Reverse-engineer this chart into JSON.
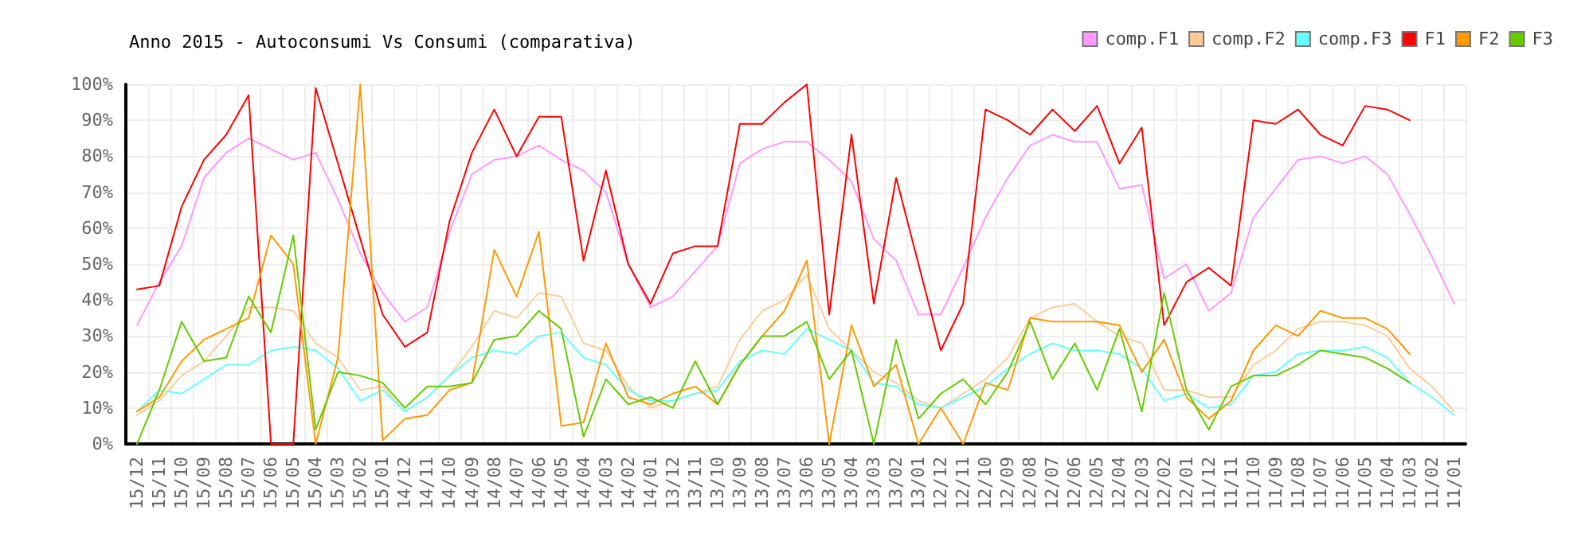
{
  "chart_data": {
    "type": "line",
    "title": "Anno 2015 - Autoconsumi Vs Consumi (comparativa)",
    "categories": [
      "15/12",
      "15/11",
      "15/10",
      "15/09",
      "15/08",
      "15/07",
      "15/06",
      "15/05",
      "15/04",
      "15/03",
      "15/02",
      "15/01",
      "14/12",
      "14/11",
      "14/10",
      "14/09",
      "14/08",
      "14/07",
      "14/06",
      "14/05",
      "14/04",
      "14/03",
      "14/02",
      "14/01",
      "13/12",
      "13/11",
      "13/10",
      "13/09",
      "13/08",
      "13/07",
      "13/06",
      "13/05",
      "13/04",
      "13/03",
      "13/02",
      "13/01",
      "12/12",
      "12/11",
      "12/10",
      "12/09",
      "12/08",
      "12/07",
      "12/06",
      "12/05",
      "12/04",
      "12/03",
      "12/02",
      "12/01",
      "11/12",
      "11/11",
      "11/10",
      "11/09",
      "11/08",
      "11/07",
      "11/06",
      "11/05",
      "11/04",
      "11/03",
      "11/02",
      "11/01"
    ],
    "series": [
      {
        "name": "comp.F1",
        "color": "#ff99ff",
        "values": [
          33,
          45,
          55,
          74,
          81,
          85,
          82,
          79,
          81,
          68,
          53,
          42,
          34,
          38,
          59,
          75,
          79,
          80,
          83,
          79,
          76,
          70,
          50,
          38,
          41,
          48,
          55,
          78,
          82,
          84,
          84,
          79,
          73,
          57,
          51,
          36,
          36,
          49,
          63,
          74,
          83,
          86,
          84,
          84,
          71,
          72,
          46,
          50,
          37,
          42,
          63,
          71,
          79,
          80,
          78,
          80,
          75,
          64,
          52,
          39
        ]
      },
      {
        "name": "comp.F2",
        "color": "#ffcc99",
        "values": [
          8,
          12,
          19,
          23,
          30,
          38,
          38,
          37,
          28,
          24,
          15,
          16,
          9,
          13,
          19,
          27,
          37,
          35,
          42,
          41,
          28,
          26,
          16,
          10,
          12,
          14,
          16,
          29,
          37,
          40,
          47,
          32,
          26,
          20,
          17,
          12,
          10,
          14,
          18,
          24,
          35,
          38,
          39,
          34,
          30,
          28,
          15,
          15,
          13,
          13,
          22,
          26,
          32,
          34,
          34,
          33,
          30,
          21,
          16,
          9
        ]
      },
      {
        "name": "comp.F3",
        "color": "#66ffff",
        "values": [
          9,
          15,
          14,
          18,
          22,
          22,
          26,
          27,
          26,
          21,
          12,
          15,
          9,
          13,
          19,
          24,
          26,
          25,
          30,
          31,
          24,
          22,
          15,
          12,
          12,
          14,
          15,
          23,
          26,
          25,
          32,
          29,
          26,
          17,
          16,
          11,
          10,
          13,
          16,
          21,
          25,
          28,
          26,
          26,
          25,
          21,
          12,
          14,
          10,
          11,
          19,
          20,
          25,
          26,
          26,
          27,
          24,
          17,
          13,
          8
        ]
      },
      {
        "name": "F1",
        "color": "#ff0000",
        "values": [
          43,
          44,
          66,
          79,
          86,
          97,
          0,
          0,
          99,
          78,
          57,
          36,
          27,
          31,
          62,
          81,
          93,
          80,
          91,
          91,
          51,
          76,
          50,
          39,
          53,
          55,
          55,
          89,
          89,
          95,
          100,
          36,
          86,
          39,
          74,
          50,
          26,
          39,
          93,
          90,
          86,
          93,
          87,
          94,
          78,
          88,
          33,
          45,
          49,
          44,
          90,
          89,
          93,
          86,
          83,
          94,
          93,
          90,
          null,
          null
        ]
      },
      {
        "name": "F2",
        "color": "#ff9900",
        "values": [
          9,
          13,
          23,
          29,
          32,
          35,
          58,
          50,
          0,
          24,
          100,
          1,
          7,
          8,
          15,
          17,
          54,
          41,
          59,
          5,
          6,
          28,
          13,
          11,
          14,
          16,
          11,
          22,
          30,
          37,
          51,
          0,
          33,
          16,
          22,
          0,
          10,
          0,
          17,
          15,
          35,
          34,
          34,
          34,
          33,
          20,
          29,
          13,
          7,
          12,
          26,
          33,
          30,
          37,
          35,
          35,
          32,
          25,
          null,
          null
        ]
      },
      {
        "name": "F3",
        "color": "#66cc00",
        "values": [
          0,
          15,
          34,
          23,
          24,
          41,
          31,
          58,
          4,
          20,
          19,
          17,
          10,
          16,
          16,
          17,
          29,
          30,
          37,
          32,
          2,
          18,
          11,
          13,
          10,
          23,
          11,
          22,
          30,
          30,
          34,
          18,
          26,
          0,
          29,
          7,
          14,
          18,
          11,
          20,
          34,
          18,
          28,
          15,
          32,
          9,
          42,
          15,
          4,
          16,
          19,
          19,
          22,
          26,
          25,
          24,
          21,
          17,
          null,
          null
        ]
      }
    ],
    "ylim": [
      0,
      100
    ],
    "yticks": [
      {
        "value": 0,
        "label": "0%"
      },
      {
        "value": 10,
        "label": "10%"
      },
      {
        "value": 20,
        "label": "20%"
      },
      {
        "value": 30,
        "label": "30%"
      },
      {
        "value": 40,
        "label": "40%"
      },
      {
        "value": 50,
        "label": "50%"
      },
      {
        "value": 60,
        "label": "60%"
      },
      {
        "value": 70,
        "label": "70%"
      },
      {
        "value": 80,
        "label": "80%"
      },
      {
        "value": 90,
        "label": "90%"
      },
      {
        "value": 100,
        "label": "100%"
      }
    ],
    "grid": true,
    "legend": "top right",
    "marker": "none",
    "line_style": "solid"
  }
}
